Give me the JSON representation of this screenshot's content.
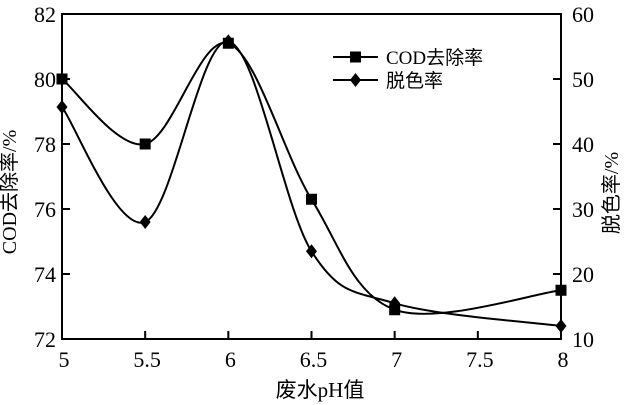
{
  "chart_data": {
    "type": "line",
    "title": "",
    "xlabel": "废水pH值",
    "ylabel_left": "COD去除率/%",
    "ylabel_right": "脱色率/%",
    "xlim": [
      5,
      8
    ],
    "ylim_left": [
      72,
      82
    ],
    "ylim_right": [
      10,
      60
    ],
    "grid": false,
    "legend_position": "top-center-inside",
    "x": [
      5,
      5.5,
      6,
      6.5,
      7,
      8
    ],
    "series": [
      {
        "name": "COD去除率",
        "axis": "left",
        "marker": "square",
        "color": "#000000",
        "values": [
          80.0,
          78.0,
          81.1,
          76.3,
          72.9,
          73.5
        ]
      },
      {
        "name": "脱色率",
        "axis": "right",
        "marker": "diamond",
        "color": "#000000",
        "values": [
          45.7,
          28.0,
          55.8,
          23.5,
          15.5,
          12.0
        ]
      }
    ],
    "x_ticks": [
      "5",
      "5.5",
      "6",
      "6.5",
      "7",
      "7.5",
      "8"
    ],
    "x_tick_values": [
      5,
      5.5,
      6,
      6.5,
      7,
      7.5,
      8
    ],
    "left_ticks": [
      "72",
      "74",
      "76",
      "78",
      "80",
      "82"
    ],
    "left_tick_values": [
      72,
      74,
      76,
      78,
      80,
      82
    ],
    "right_ticks": [
      "10",
      "20",
      "30",
      "40",
      "50",
      "60"
    ],
    "right_tick_values": [
      10,
      20,
      30,
      40,
      50,
      60
    ],
    "colors": {
      "line": "#000000",
      "background": "#ffffff",
      "frame": "#000000"
    }
  }
}
